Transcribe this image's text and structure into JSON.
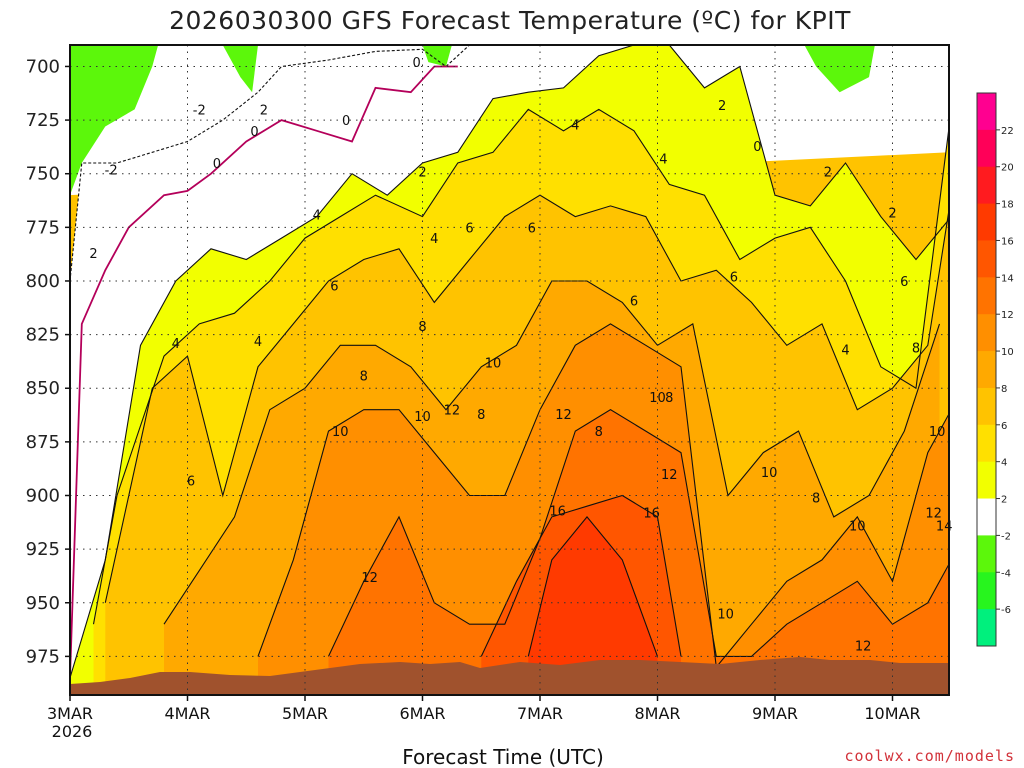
{
  "chart_data": {
    "type": "heatmap",
    "title": "2026030300 GFS Forecast Temperature (ºC) for KPIT",
    "xlabel": "Forecast Time (UTC)",
    "ylabel": "",
    "x_ticks": [
      "3MAR",
      "4MAR",
      "5MAR",
      "6MAR",
      "7MAR",
      "8MAR",
      "9MAR",
      "10MAR"
    ],
    "x_year": "2026",
    "x_range_days": [
      0,
      7.5
    ],
    "y_ticks": [
      700,
      725,
      750,
      775,
      800,
      825,
      850,
      875,
      900,
      925,
      950,
      975
    ],
    "y_range": [
      690,
      993
    ],
    "colorbar": {
      "levels": [
        -6,
        -4,
        -2,
        2,
        4,
        6,
        8,
        10,
        12,
        14,
        16,
        18,
        20,
        22
      ],
      "tick_labels": [
        "22",
        "20",
        "18",
        "16",
        "14",
        "12",
        "10",
        "8",
        "6",
        "4",
        "2",
        "-2",
        "-4",
        "-6"
      ],
      "colors": [
        "#00f07d",
        "#27f51e",
        "#5cf70b",
        "#ffffff",
        "#f2ff00",
        "#ffe000",
        "#ffc300",
        "#ffa900",
        "#ff8f00",
        "#ff7300",
        "#ff5600",
        "#ff3a00",
        "#ff1b1f",
        "#ff0058",
        "#ff0090"
      ]
    },
    "series": [
      {
        "name": "-2 ºC isotherm",
        "x": [
          0.0,
          0.1,
          0.4,
          0.7,
          1.0,
          1.3,
          1.6,
          1.8,
          2.2,
          2.6,
          3.0,
          3.2,
          3.4
        ],
        "y": [
          800,
          745,
          745,
          740,
          735,
          725,
          712,
          700,
          697,
          693,
          692,
          700,
          690
        ]
      },
      {
        "name": "0 ºC isotherm",
        "x": [
          0.0,
          0.1,
          0.3,
          0.5,
          0.8,
          1.0,
          1.2,
          1.5,
          1.8,
          2.1,
          2.4,
          2.6,
          2.9,
          3.1,
          3.3
        ],
        "y": [
          985,
          820,
          795,
          775,
          760,
          758,
          750,
          735,
          725,
          730,
          735,
          710,
          712,
          700,
          700
        ]
      },
      {
        "name": "2 ºC isotherm",
        "x": [
          0.0,
          0.3,
          0.6,
          0.9,
          1.2,
          1.5,
          1.8,
          2.1,
          2.4,
          2.7,
          3.0,
          3.3,
          3.6,
          3.9,
          4.2,
          4.5,
          4.8,
          5.1,
          5.4,
          5.7,
          6.0,
          6.3,
          6.6,
          6.9,
          7.2,
          7.5
        ],
        "y": [
          985,
          930,
          830,
          800,
          785,
          790,
          780,
          770,
          750,
          760,
          745,
          740,
          715,
          712,
          710,
          695,
          690,
          690,
          710,
          700,
          760,
          765,
          745,
          770,
          790,
          770
        ]
      },
      {
        "name": "4 ºC isotherm",
        "x": [
          0.2,
          0.4,
          0.8,
          1.1,
          1.4,
          1.7,
          2.0,
          2.3,
          2.6,
          3.0,
          3.3,
          3.6,
          3.9,
          4.2,
          4.5,
          4.8,
          5.1,
          5.4,
          5.7,
          6.0,
          6.3,
          6.6,
          6.9,
          7.2,
          7.5
        ],
        "y": [
          960,
          900,
          835,
          820,
          815,
          800,
          780,
          770,
          760,
          770,
          745,
          740,
          720,
          730,
          720,
          730,
          755,
          760,
          790,
          780,
          775,
          800,
          840,
          850,
          720
        ]
      },
      {
        "name": "6 ºC isotherm",
        "x": [
          0.3,
          0.7,
          1.0,
          1.3,
          1.6,
          1.9,
          2.2,
          2.5,
          2.8,
          3.1,
          3.4,
          3.7,
          4.0,
          4.3,
          4.6,
          4.9,
          5.2,
          5.5,
          5.8,
          6.1,
          6.4,
          6.7,
          7.0,
          7.3,
          7.5
        ],
        "y": [
          950,
          850,
          835,
          900,
          840,
          820,
          800,
          790,
          785,
          810,
          790,
          770,
          760,
          770,
          765,
          770,
          800,
          795,
          810,
          830,
          820,
          860,
          850,
          830,
          760
        ]
      },
      {
        "name": "8 ºC isotherm",
        "x": [
          0.8,
          1.1,
          1.4,
          1.7,
          2.0,
          2.3,
          2.6,
          2.9,
          3.2,
          3.5,
          3.8,
          4.1,
          4.4,
          4.7,
          5.0,
          5.3,
          5.6,
          5.9,
          6.2,
          6.5,
          6.8,
          7.1,
          7.4
        ],
        "y": [
          960,
          935,
          910,
          860,
          850,
          830,
          830,
          840,
          860,
          840,
          830,
          800,
          800,
          810,
          830,
          820,
          900,
          880,
          870,
          910,
          900,
          870,
          820
        ]
      },
      {
        "name": "10 ºC isotherm",
        "x": [
          1.6,
          1.9,
          2.2,
          2.5,
          2.8,
          3.1,
          3.4,
          3.7,
          4.0,
          4.3,
          4.6,
          4.9,
          5.2,
          5.5,
          5.8,
          6.1,
          6.4,
          6.7,
          7.0,
          7.3,
          7.5
        ],
        "y": [
          975,
          930,
          870,
          860,
          860,
          880,
          900,
          900,
          860,
          830,
          820,
          830,
          840,
          980,
          960,
          940,
          930,
          910,
          940,
          880,
          860
        ]
      },
      {
        "name": "12 ºC isotherm",
        "x": [
          2.2,
          2.5,
          2.8,
          3.1,
          3.4,
          3.7,
          4.0,
          4.3,
          4.6,
          4.9,
          5.2,
          5.5,
          5.8,
          6.1,
          6.4,
          6.7,
          7.0,
          7.3,
          7.5
        ],
        "y": [
          975,
          940,
          910,
          950,
          960,
          960,
          920,
          870,
          860,
          870,
          880,
          975,
          975,
          960,
          950,
          940,
          960,
          950,
          930
        ]
      },
      {
        "name": "14 ºC isotherm",
        "x": [
          3.5,
          3.8,
          4.1,
          4.4,
          4.7,
          5.0,
          5.2
        ],
        "y": [
          975,
          940,
          910,
          905,
          900,
          910,
          975
        ]
      },
      {
        "name": "16 ºC isotherm",
        "x": [
          3.9,
          4.1,
          4.4,
          4.7,
          4.9,
          5.0
        ],
        "y": [
          975,
          930,
          910,
          930,
          960,
          975
        ]
      }
    ],
    "contour_labels": [
      "-2",
      "-2",
      "0",
      "0",
      "0",
      "0",
      "0",
      "2",
      "2",
      "2",
      "2",
      "2",
      "2",
      "4",
      "4",
      "4",
      "4",
      "4",
      "4",
      "4",
      "6",
      "6",
      "6",
      "6",
      "6",
      "6",
      "6",
      "8",
      "8",
      "8",
      "8",
      "8",
      "8",
      "8",
      "10",
      "10",
      "10",
      "10",
      "10",
      "10",
      "10",
      "10",
      "12",
      "12",
      "12",
      "12",
      "12",
      "12",
      "14",
      "16",
      "16"
    ]
  },
  "credit": "coolwx.com/models"
}
